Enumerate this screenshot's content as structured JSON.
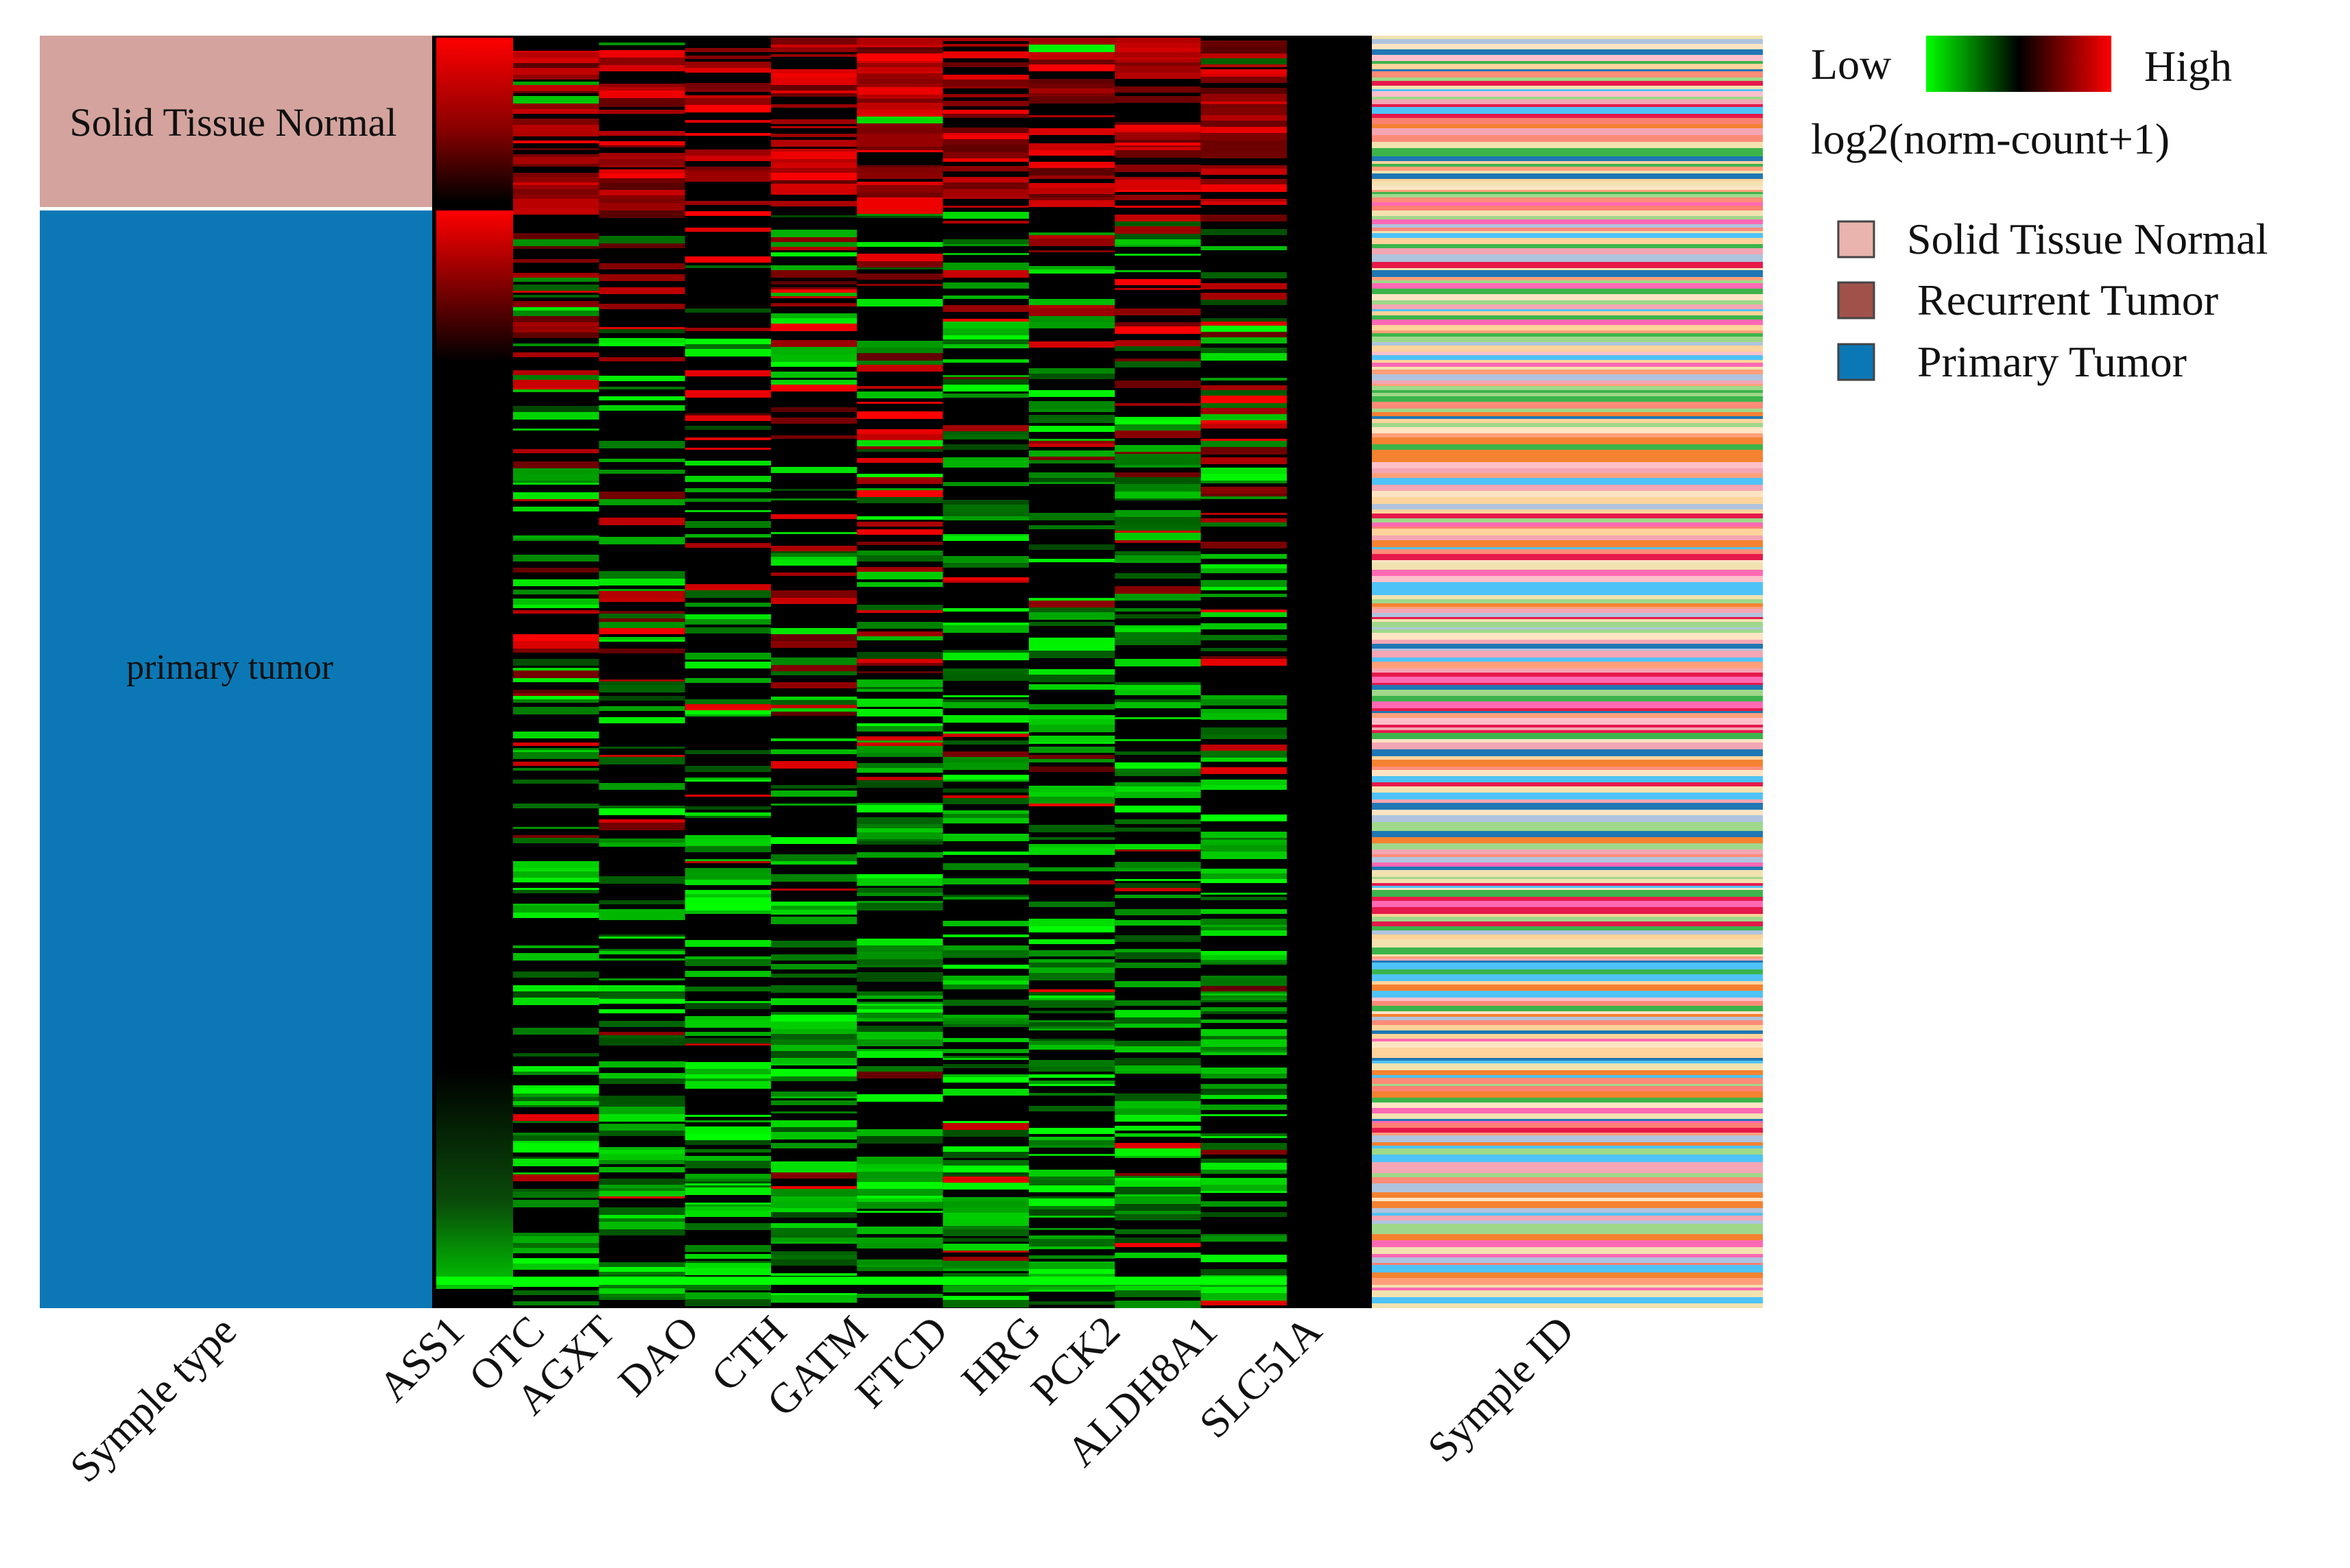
{
  "chart_data": {
    "type": "heatmap",
    "title": "",
    "columns": [
      "ASS1",
      "OTC",
      "AGXT",
      "DAO",
      "CTH",
      "GATM",
      "FTCD",
      "HRG",
      "PCK2",
      "ALDH8A1",
      "SLC51A"
    ],
    "row_groups": [
      {
        "label": "Solid Tissue Normal",
        "color": "#d4a39d"
      },
      {
        "label": "primary tumor",
        "color": "#0b78b5"
      }
    ],
    "annotation_tracks": [
      {
        "label": "Symple type"
      },
      {
        "label": "Symple ID"
      }
    ],
    "color_scale": {
      "low_label": "Low",
      "high_label": "High",
      "low_color": "#00ff00",
      "mid_color": "#000000",
      "high_color": "#ff0000",
      "title": "log2(norm-count+1)"
    },
    "legend": [
      {
        "label": "Solid Tissue Normal",
        "color": "#e8b4ad"
      },
      {
        "label": "Recurrent Tumor",
        "color": "#a0524a"
      },
      {
        "label": "Primary Tumor",
        "color": "#0b78b5"
      }
    ],
    "x_tick_rotation": "-45deg"
  }
}
